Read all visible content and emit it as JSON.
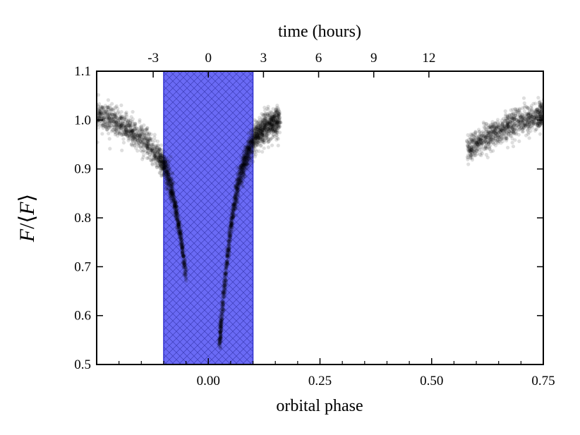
{
  "chart_data": {
    "type": "scatter",
    "xlabel": "orbital phase",
    "x2label": "time (hours)",
    "ylabel_f": "F",
    "ylabel_slash": "/⟨",
    "ylabel_f2": "F",
    "ylabel_close": "⟩",
    "xlim": [
      -0.25,
      0.75
    ],
    "ylim": [
      0.5,
      1.1
    ],
    "x_ticks": [
      0.0,
      0.25,
      0.5,
      0.75
    ],
    "x_tick_labels": [
      "0.00",
      "0.25",
      "0.50",
      "0.75"
    ],
    "y_ticks": [
      0.5,
      0.6,
      0.7,
      0.8,
      0.9,
      1.0,
      1.1
    ],
    "y_tick_labels": [
      "0.5",
      "0.6",
      "0.7",
      "0.8",
      "0.9",
      "1.0",
      "1.1"
    ],
    "x2_ticks_hours": [
      -3,
      0,
      3,
      6,
      9,
      12
    ],
    "x2_tick_labels": [
      "-3",
      "0",
      "3",
      "6",
      "9",
      "12"
    ],
    "hours_per_phase": 24.3,
    "grid": false,
    "shaded_region": {
      "x": [
        -0.1,
        0.1
      ],
      "color": "#6a6af5",
      "hatch": true
    },
    "series": [
      {
        "marker_color": "#000000",
        "points": [
          [
            -0.25,
            1.012
          ],
          [
            -0.23,
            1.005
          ],
          [
            -0.21,
            0.997
          ],
          [
            -0.19,
            0.988
          ],
          [
            -0.17,
            0.976
          ],
          [
            -0.15,
            0.962
          ],
          [
            -0.13,
            0.946
          ],
          [
            -0.11,
            0.925
          ],
          [
            -0.1,
            0.91
          ],
          [
            -0.09,
            0.885
          ],
          [
            -0.08,
            0.85
          ],
          [
            -0.07,
            0.805
          ],
          [
            -0.06,
            0.75
          ],
          [
            -0.05,
            0.68
          ],
          [
            0.025,
            0.54
          ],
          [
            0.03,
            0.6
          ],
          [
            0.04,
            0.7
          ],
          [
            0.05,
            0.78
          ],
          [
            0.06,
            0.84
          ],
          [
            0.07,
            0.88
          ],
          [
            0.08,
            0.91
          ],
          [
            0.09,
            0.935
          ],
          [
            0.1,
            0.955
          ],
          [
            0.11,
            0.97
          ],
          [
            0.12,
            0.98
          ],
          [
            0.13,
            0.988
          ],
          [
            0.14,
            0.993
          ],
          [
            0.15,
            0.997
          ],
          [
            0.16,
            1.0
          ],
          [
            0.58,
            0.94
          ],
          [
            0.6,
            0.952
          ],
          [
            0.62,
            0.964
          ],
          [
            0.64,
            0.974
          ],
          [
            0.66,
            0.983
          ],
          [
            0.68,
            0.99
          ],
          [
            0.7,
            0.997
          ],
          [
            0.72,
            1.003
          ],
          [
            0.74,
            1.008
          ],
          [
            0.75,
            1.012
          ]
        ]
      }
    ]
  }
}
